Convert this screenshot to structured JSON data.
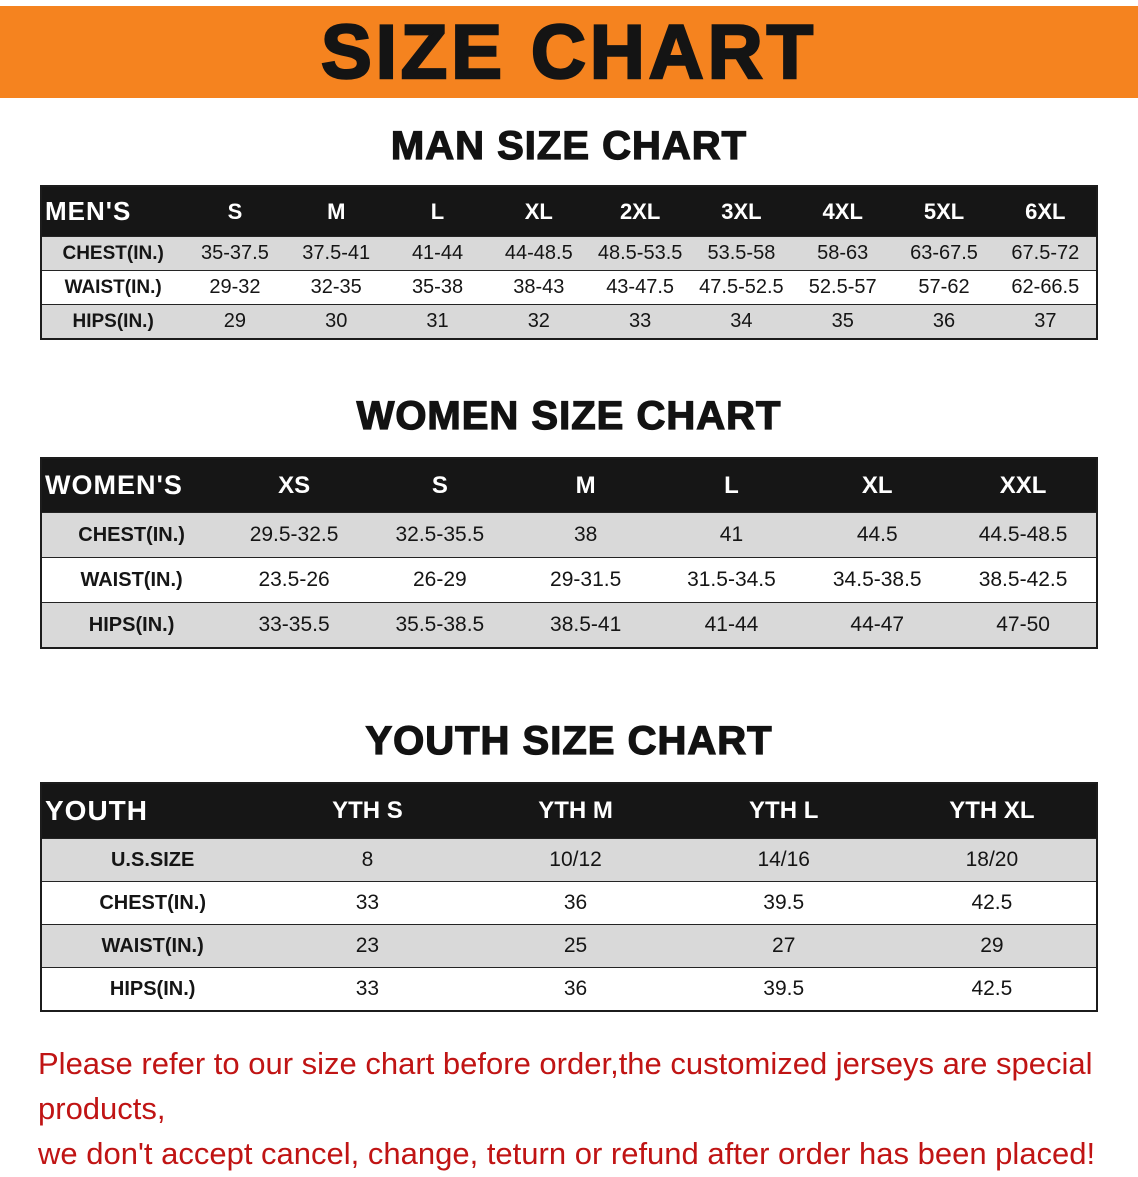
{
  "banner": {
    "title": "SIZE CHART"
  },
  "sections": [
    {
      "title": "MAN SIZE CHART",
      "table": {
        "header": [
          "MEN'S",
          "S",
          "M",
          "L",
          "XL",
          "2XL",
          "3XL",
          "4XL",
          "5XL",
          "6XL"
        ],
        "rows": [
          {
            "label": "CHEST(IN.)",
            "values": [
              "35-37.5",
              "37.5-41",
              "41-44",
              "44-48.5",
              "48.5-53.5",
              "53.5-58",
              "58-63",
              "63-67.5",
              "67.5-72"
            ]
          },
          {
            "label": "WAIST(IN.)",
            "values": [
              "29-32",
              "32-35",
              "35-38",
              "38-43",
              "43-47.5",
              "47.5-52.5",
              "52.5-57",
              "57-62",
              "62-66.5"
            ]
          },
          {
            "label": "HIPS(IN.)",
            "values": [
              "29",
              "30",
              "31",
              "32",
              "33",
              "34",
              "35",
              "36",
              "37"
            ]
          }
        ]
      }
    },
    {
      "title": "WOMEN SIZE CHART",
      "table": {
        "header": [
          "WOMEN'S",
          "XS",
          "S",
          "M",
          "L",
          "XL",
          "XXL"
        ],
        "rows": [
          {
            "label": "CHEST(IN.)",
            "values": [
              "29.5-32.5",
              "32.5-35.5",
              "38",
              "41",
              "44.5",
              "44.5-48.5"
            ]
          },
          {
            "label": "WAIST(IN.)",
            "values": [
              "23.5-26",
              "26-29",
              "29-31.5",
              "31.5-34.5",
              "34.5-38.5",
              "38.5-42.5"
            ]
          },
          {
            "label": "HIPS(IN.)",
            "values": [
              "33-35.5",
              "35.5-38.5",
              "38.5-41",
              "41-44",
              "44-47",
              "47-50"
            ]
          }
        ]
      }
    },
    {
      "title": "YOUTH SIZE CHART",
      "table": {
        "header": [
          "YOUTH",
          "YTH S",
          "YTH M",
          "YTH L",
          "YTH XL"
        ],
        "rows": [
          {
            "label": "U.S.SIZE",
            "values": [
              "8",
              "10/12",
              "14/16",
              "18/20"
            ]
          },
          {
            "label": "CHEST(IN.)",
            "values": [
              "33",
              "36",
              "39.5",
              "42.5"
            ]
          },
          {
            "label": "WAIST(IN.)",
            "values": [
              "23",
              "25",
              "27",
              "29"
            ]
          },
          {
            "label": "HIPS(IN.)",
            "values": [
              "33",
              "36",
              "39.5",
              "42.5"
            ]
          }
        ]
      }
    }
  ],
  "footer": {
    "line1": "Please refer to our size chart before order,the customized jerseys are special products,",
    "line2": "we don't accept cancel, change, teturn or refund after order has been placed!"
  },
  "colors": {
    "banner_bg": "#f5831f",
    "header_bg": "#161616",
    "stripe": "#d9d9d9",
    "footer_text": "#c01414"
  }
}
